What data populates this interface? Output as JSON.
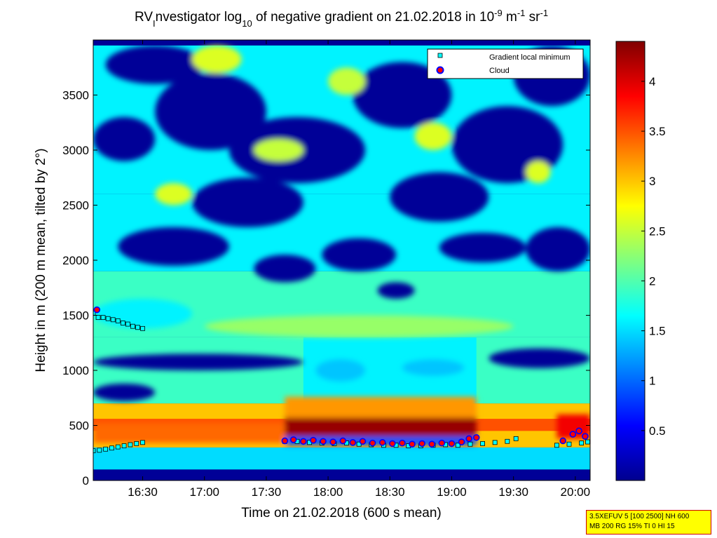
{
  "title": {
    "pre": "RV",
    "sub1": "I",
    "mid1": "nvestigator log",
    "sub2": "10",
    "mid2": " of negative gradient on 21.02.2018 in 10",
    "sup1": "-9",
    "mid3": " m",
    "sup2": "-1",
    "mid4": " sr",
    "sup3": "-1"
  },
  "info_box": {
    "line1": "3.5XEFUV 5 [100 2500] NH 600",
    "line2": "MB 200 RG 15% TI 0 HI 15"
  },
  "colors": {
    "cloud": "#ff0000",
    "gradient_min": "#00ffff",
    "track": "#000000"
  },
  "chart_data": {
    "type": "heatmap",
    "xlabel": "Time on 21.02.2018 (600 s mean)",
    "ylabel": "Height in m (200 m mean, tilted by 2°)",
    "x_unit": "hours",
    "xlim": [
      16.1,
      20.12
    ],
    "ylim": [
      0,
      4000
    ],
    "x_ticks": [
      {
        "value": 16.5,
        "label": "16:30"
      },
      {
        "value": 17.0,
        "label": "17:00"
      },
      {
        "value": 17.5,
        "label": "17:30"
      },
      {
        "value": 18.0,
        "label": "18:00"
      },
      {
        "value": 18.5,
        "label": "18:30"
      },
      {
        "value": 19.0,
        "label": "19:00"
      },
      {
        "value": 19.5,
        "label": "19:30"
      },
      {
        "value": 20.0,
        "label": "20:00"
      }
    ],
    "y_ticks": [
      {
        "value": 0,
        "label": "0"
      },
      {
        "value": 500,
        "label": "500"
      },
      {
        "value": 1000,
        "label": "1000"
      },
      {
        "value": 1500,
        "label": "1500"
      },
      {
        "value": 2000,
        "label": "2000"
      },
      {
        "value": 2500,
        "label": "2500"
      },
      {
        "value": 3000,
        "label": "3000"
      },
      {
        "value": 3500,
        "label": "3500"
      }
    ],
    "colorbar": {
      "colormap": "jet",
      "clim": [
        0,
        4.4
      ],
      "ticks": [
        {
          "value": 0.5,
          "label": "0.5"
        },
        {
          "value": 1,
          "label": "1"
        },
        {
          "value": 1.5,
          "label": "1.5"
        },
        {
          "value": 2,
          "label": "2"
        },
        {
          "value": 2.5,
          "label": "2.5"
        },
        {
          "value": 3,
          "label": "3"
        },
        {
          "value": 3.5,
          "label": "3.5"
        },
        {
          "value": 4,
          "label": "4"
        }
      ]
    },
    "legend": {
      "placement": "top-right",
      "entries": [
        {
          "label": "Gradient local minimum",
          "marker": "square",
          "color": "#00ffff"
        },
        {
          "label": "Cloud",
          "marker": "circle",
          "color": "#ff0000"
        }
      ]
    },
    "layers": [
      {
        "x0": 16.1,
        "x1": 20.12,
        "y0": 0,
        "y1": 4000,
        "value": 0.1
      },
      {
        "x0": 16.1,
        "x1": 20.12,
        "y0": 100,
        "y1": 300,
        "value": 1.5
      },
      {
        "x0": 16.1,
        "x1": 20.12,
        "y0": 300,
        "y1": 700,
        "value": 3.0
      },
      {
        "x0": 16.1,
        "x1": 20.12,
        "y0": 450,
        "y1": 560,
        "value": 3.5
      },
      {
        "x0": 16.1,
        "x1": 20.12,
        "y0": 700,
        "y1": 1300,
        "value": 1.9
      },
      {
        "x0": 17.8,
        "x1": 19.2,
        "y0": 700,
        "y1": 1300,
        "value": 1.6
      },
      {
        "x0": 16.1,
        "x1": 20.12,
        "y0": 1300,
        "y1": 1900,
        "value": 1.9
      },
      {
        "x0": 16.1,
        "x1": 20.12,
        "y0": 1900,
        "y1": 2600,
        "value": 1.6
      },
      {
        "x0": 16.1,
        "x1": 20.12,
        "y0": 2600,
        "y1": 3950,
        "value": 1.6
      }
    ],
    "features": [
      {
        "shape": "ellipse",
        "x0": 16.1,
        "x1": 17.8,
        "y0": 1000,
        "y1": 1150,
        "value": 0.1
      },
      {
        "shape": "ellipse",
        "x0": 19.3,
        "x1": 20.12,
        "y0": 1020,
        "y1": 1200,
        "value": 0.1
      },
      {
        "shape": "ellipse",
        "x0": 16.1,
        "x1": 16.6,
        "y0": 720,
        "y1": 880,
        "value": 0.1
      },
      {
        "shape": "ellipse",
        "x0": 17.0,
        "x1": 19.5,
        "y0": 1300,
        "y1": 1500,
        "value": 2.3
      },
      {
        "shape": "ellipse",
        "x0": 17.9,
        "x1": 18.3,
        "y0": 900,
        "y1": 1100,
        "value": 1.4
      },
      {
        "shape": "ellipse",
        "x0": 18.6,
        "x1": 19.1,
        "y0": 950,
        "y1": 1100,
        "value": 1.4
      },
      {
        "shape": "ellipse",
        "x0": 16.1,
        "x1": 16.9,
        "y0": 1380,
        "y1": 1650,
        "value": 1.6
      },
      {
        "shape": "ellipse",
        "x0": 16.3,
        "x1": 17.2,
        "y0": 1950,
        "y1": 2300,
        "value": 0.1
      },
      {
        "shape": "ellipse",
        "x0": 17.4,
        "x1": 17.9,
        "y0": 1800,
        "y1": 2050,
        "value": 0.1
      },
      {
        "shape": "ellipse",
        "x0": 17.95,
        "x1": 18.55,
        "y0": 1900,
        "y1": 2200,
        "value": 0.1
      },
      {
        "shape": "ellipse",
        "x0": 18.9,
        "x1": 19.6,
        "y0": 1980,
        "y1": 2250,
        "value": 0.1
      },
      {
        "shape": "ellipse",
        "x0": 19.6,
        "x1": 20.12,
        "y0": 1900,
        "y1": 2300,
        "value": 0.1
      },
      {
        "shape": "ellipse",
        "x0": 18.4,
        "x1": 18.7,
        "y0": 1650,
        "y1": 1800,
        "value": 0.1
      },
      {
        "shape": "ellipse",
        "x0": 16.1,
        "x1": 16.6,
        "y0": 2900,
        "y1": 3300,
        "value": 0.1
      },
      {
        "shape": "ellipse",
        "x0": 16.6,
        "x1": 17.5,
        "y0": 3000,
        "y1": 3700,
        "value": 0.1
      },
      {
        "shape": "ellipse",
        "x0": 17.2,
        "x1": 18.3,
        "y0": 2700,
        "y1": 3300,
        "value": 0.1
      },
      {
        "shape": "ellipse",
        "x0": 18.2,
        "x1": 19.0,
        "y0": 3200,
        "y1": 3800,
        "value": 0.1
      },
      {
        "shape": "ellipse",
        "x0": 19.0,
        "x1": 19.9,
        "y0": 2700,
        "y1": 3400,
        "value": 0.1
      },
      {
        "shape": "ellipse",
        "x0": 19.5,
        "x1": 20.12,
        "y0": 3400,
        "y1": 3950,
        "value": 0.1
      },
      {
        "shape": "ellipse",
        "x0": 16.2,
        "x1": 17.0,
        "y0": 3600,
        "y1": 3950,
        "value": 0.1
      },
      {
        "shape": "ellipse",
        "x0": 16.9,
        "x1": 17.8,
        "y0": 2300,
        "y1": 2750,
        "value": 0.1
      },
      {
        "shape": "ellipse",
        "x0": 18.5,
        "x1": 19.3,
        "y0": 2350,
        "y1": 2800,
        "value": 0.1
      },
      {
        "shape": "ellipse",
        "x0": 16.9,
        "x1": 17.3,
        "y0": 3700,
        "y1": 3950,
        "value": 2.6
      },
      {
        "shape": "ellipse",
        "x0": 18.7,
        "x1": 19.0,
        "y0": 3000,
        "y1": 3250,
        "value": 2.6
      },
      {
        "shape": "ellipse",
        "x0": 16.6,
        "x1": 16.9,
        "y0": 2500,
        "y1": 2700,
        "value": 2.6
      },
      {
        "shape": "ellipse",
        "x0": 18.0,
        "x1": 18.3,
        "y0": 3500,
        "y1": 3750,
        "value": 2.5
      },
      {
        "shape": "ellipse",
        "x0": 19.6,
        "x1": 19.8,
        "y0": 2700,
        "y1": 2900,
        "value": 2.6
      },
      {
        "shape": "ellipse",
        "x0": 17.4,
        "x1": 17.8,
        "y0": 2900,
        "y1": 3100,
        "value": 2.5
      },
      {
        "shape": "rect",
        "x0": 17.65,
        "x1": 19.2,
        "y0": 400,
        "y1": 570,
        "value": 4.3
      },
      {
        "shape": "rect",
        "x0": 17.65,
        "x1": 19.2,
        "y0": 570,
        "y1": 760,
        "value": 3.2
      },
      {
        "shape": "rect",
        "x0": 17.65,
        "x1": 19.2,
        "y0": 320,
        "y1": 400,
        "value": 0.9
      },
      {
        "shape": "rect",
        "x0": 19.85,
        "x1": 20.12,
        "y0": 380,
        "y1": 600,
        "value": 3.9
      },
      {
        "shape": "rect",
        "x0": 16.1,
        "x1": 17.65,
        "y0": 340,
        "y1": 520,
        "value": 3.4
      }
    ],
    "series": [
      {
        "name": "Gradient local minimum",
        "marker": "square",
        "points": [
          [
            16.1,
            1520
          ],
          [
            16.14,
            1480
          ],
          [
            16.18,
            1480
          ],
          [
            16.22,
            1470
          ],
          [
            16.26,
            1460
          ],
          [
            16.3,
            1450
          ],
          [
            16.34,
            1430
          ],
          [
            16.38,
            1420
          ],
          [
            16.42,
            1400
          ],
          [
            16.46,
            1390
          ],
          [
            16.5,
            1380
          ],
          [
            16.1,
            270
          ],
          [
            16.15,
            275
          ],
          [
            16.2,
            285
          ],
          [
            16.25,
            295
          ],
          [
            16.3,
            305
          ],
          [
            16.35,
            315
          ],
          [
            16.4,
            325
          ],
          [
            16.45,
            335
          ],
          [
            16.5,
            345
          ],
          [
            17.65,
            355
          ],
          [
            17.75,
            355
          ],
          [
            17.85,
            345
          ],
          [
            17.95,
            340
          ],
          [
            18.05,
            335
          ],
          [
            18.15,
            340
          ],
          [
            18.25,
            330
          ],
          [
            18.35,
            325
          ],
          [
            18.45,
            320
          ],
          [
            18.55,
            320
          ],
          [
            18.65,
            315
          ],
          [
            18.75,
            315
          ],
          [
            18.85,
            320
          ],
          [
            18.95,
            325
          ],
          [
            19.05,
            320
          ],
          [
            19.15,
            330
          ],
          [
            19.25,
            335
          ],
          [
            19.35,
            345
          ],
          [
            19.45,
            355
          ],
          [
            19.52,
            380
          ],
          [
            19.85,
            320
          ],
          [
            19.95,
            330
          ],
          [
            20.05,
            340
          ],
          [
            20.1,
            350
          ]
        ]
      },
      {
        "name": "Cloud",
        "marker": "circle",
        "points": [
          [
            16.13,
            1550
          ],
          [
            17.65,
            360
          ],
          [
            17.72,
            370
          ],
          [
            17.8,
            355
          ],
          [
            17.88,
            365
          ],
          [
            17.96,
            355
          ],
          [
            18.04,
            350
          ],
          [
            18.12,
            360
          ],
          [
            18.2,
            345
          ],
          [
            18.28,
            355
          ],
          [
            18.36,
            340
          ],
          [
            18.44,
            345
          ],
          [
            18.52,
            335
          ],
          [
            18.6,
            340
          ],
          [
            18.68,
            330
          ],
          [
            18.76,
            335
          ],
          [
            18.84,
            330
          ],
          [
            18.92,
            340
          ],
          [
            19.0,
            335
          ],
          [
            19.08,
            350
          ],
          [
            19.14,
            380
          ],
          [
            19.2,
            390
          ],
          [
            19.9,
            360
          ],
          [
            19.98,
            420
          ],
          [
            20.03,
            450
          ],
          [
            20.08,
            400
          ]
        ]
      }
    ]
  }
}
